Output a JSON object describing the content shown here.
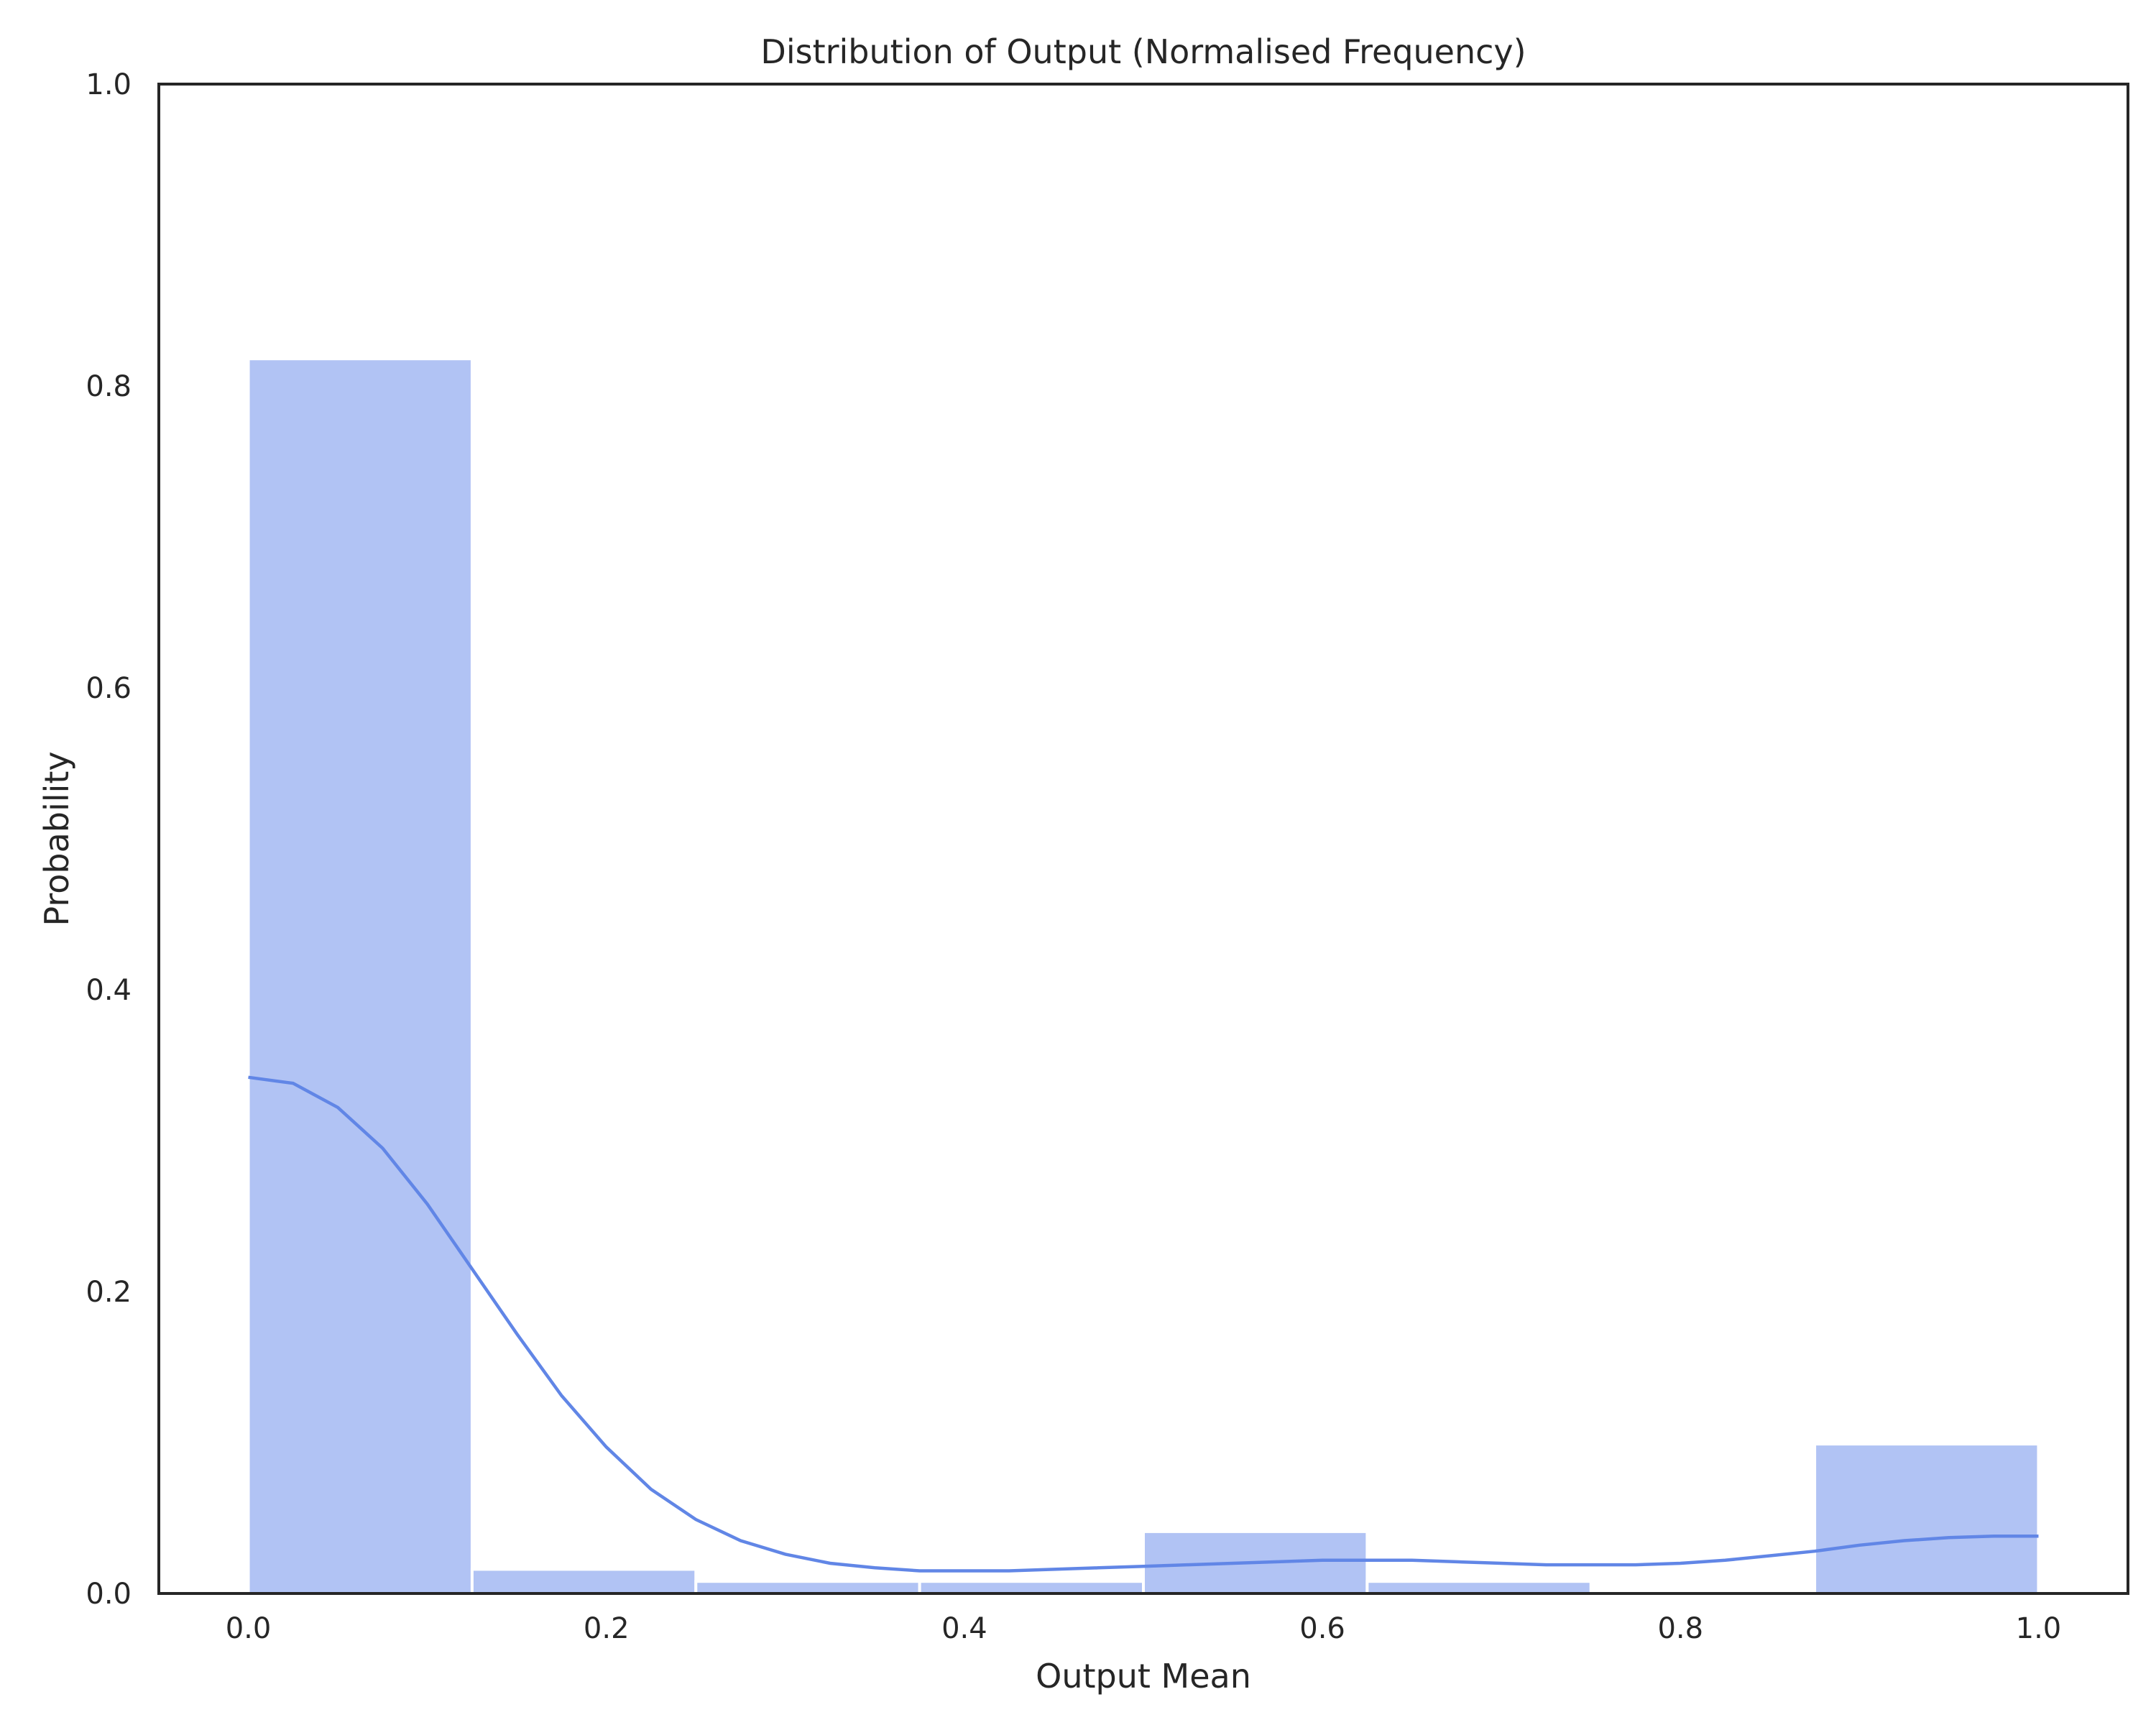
{
  "chart_data": {
    "type": "bar",
    "title": "Distribution of Output (Normalised Frequency)",
    "xlabel": "Output Mean",
    "ylabel": "Probability",
    "xlim": [
      -0.05,
      1.05
    ],
    "ylim": [
      0.0,
      1.0
    ],
    "xticks": [
      "0.0",
      "0.2",
      "0.4",
      "0.6",
      "0.8",
      "1.0"
    ],
    "yticks": [
      "0.0",
      "0.2",
      "0.4",
      "0.6",
      "0.8",
      "1.0"
    ],
    "bin_edges": [
      0.0,
      0.125,
      0.25,
      0.375,
      0.5,
      0.625,
      0.75,
      0.875,
      1.0
    ],
    "values": [
      0.818,
      0.016,
      0.008,
      0.008,
      0.041,
      0.008,
      0.0,
      0.099
    ],
    "kde": {
      "x": [
        0.0,
        0.025,
        0.05,
        0.075,
        0.1,
        0.125,
        0.15,
        0.175,
        0.2,
        0.225,
        0.25,
        0.275,
        0.3,
        0.325,
        0.35,
        0.375,
        0.4,
        0.425,
        0.45,
        0.475,
        0.5,
        0.525,
        0.55,
        0.575,
        0.6,
        0.625,
        0.65,
        0.675,
        0.7,
        0.725,
        0.75,
        0.775,
        0.8,
        0.825,
        0.85,
        0.875,
        0.9,
        0.925,
        0.95,
        0.975,
        1.0
      ],
      "y": [
        0.342,
        0.338,
        0.322,
        0.295,
        0.258,
        0.215,
        0.172,
        0.131,
        0.097,
        0.069,
        0.049,
        0.035,
        0.026,
        0.02,
        0.017,
        0.015,
        0.015,
        0.015,
        0.016,
        0.017,
        0.018,
        0.019,
        0.02,
        0.021,
        0.022,
        0.022,
        0.022,
        0.021,
        0.02,
        0.019,
        0.019,
        0.019,
        0.02,
        0.022,
        0.025,
        0.028,
        0.032,
        0.035,
        0.037,
        0.038,
        0.038
      ]
    },
    "bar_color": "#b1c3f4",
    "line_color": "#6186e6",
    "grid": false,
    "legend": "none"
  }
}
